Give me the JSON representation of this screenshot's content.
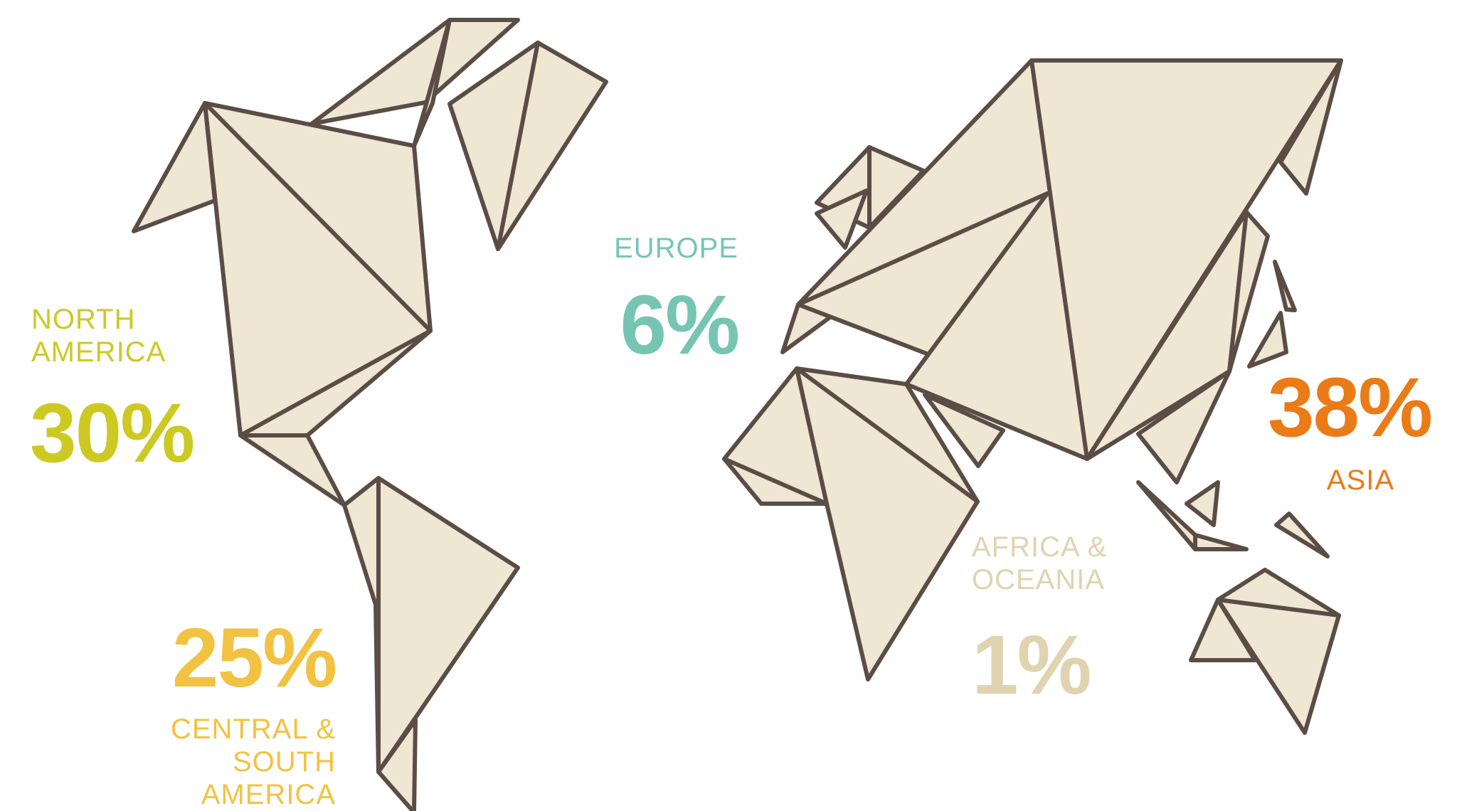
{
  "colors": {
    "north_america": "#cdc923",
    "central_south_america": "#f2c242",
    "europe": "#76c5b2",
    "africa_oceania": "#e0d3b0",
    "asia": "#ea7b16",
    "land_fill": "#efe6d4",
    "outline": "#5b4d45"
  },
  "regions": {
    "north_america": {
      "name": "NORTH\nAMERICA",
      "percent": "30%",
      "share": 30
    },
    "central_south_america": {
      "name": "CENTRAL & SOUTH\nAMERICA",
      "percent": "25%",
      "share": 25
    },
    "europe": {
      "name": "EUROPE",
      "percent": "6%",
      "share": 6
    },
    "africa_oceania": {
      "name": "AFRICA &\nOCEANIA",
      "percent": "1%",
      "share": 1
    },
    "asia": {
      "name": "ASIA",
      "percent": "38%",
      "share": 38
    }
  }
}
